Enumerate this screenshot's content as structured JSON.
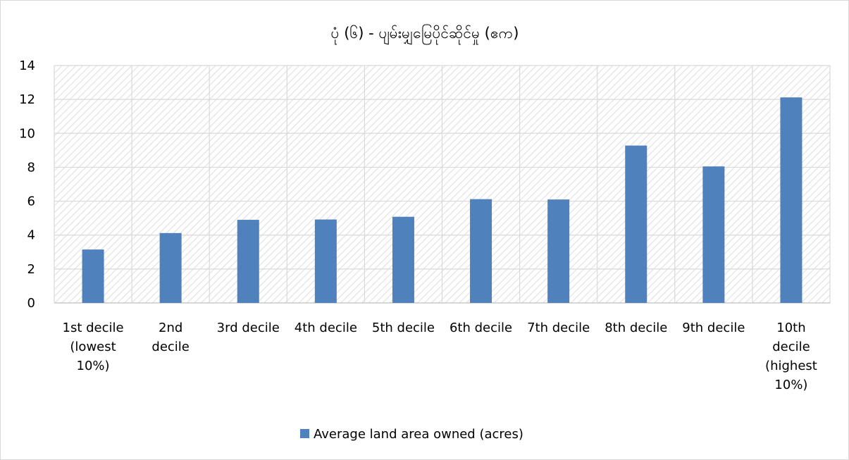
{
  "chart_data": {
    "type": "bar",
    "title": "ပုံ (၆) - ပျမ်းမျှမြေပိုင်ဆိုင်မှု (ဧက)",
    "xlabel": "",
    "ylabel": "",
    "ylim": [
      0,
      14
    ],
    "yticks": [
      "0",
      "2",
      "4",
      "6",
      "8",
      "10",
      "12",
      "14"
    ],
    "grid": true,
    "plot_background": "diagonal-hatch",
    "legend_position": "bottom",
    "categories": [
      [
        "1st decile",
        "(lowest",
        "10%)"
      ],
      [
        "2nd",
        "decile"
      ],
      [
        "3rd decile"
      ],
      [
        "4th decile"
      ],
      [
        "5th decile"
      ],
      [
        "6th decile"
      ],
      [
        "7th decile"
      ],
      [
        "8th decile"
      ],
      [
        "9th decile"
      ],
      [
        "10th",
        "decile",
        "(highest",
        "10%)"
      ]
    ],
    "series": [
      {
        "name": "Average land area owned (acres)",
        "color": "#4f81bd",
        "values": [
          3.15,
          4.12,
          4.9,
          4.92,
          5.08,
          6.12,
          6.1,
          9.28,
          8.05,
          12.12
        ]
      }
    ]
  }
}
